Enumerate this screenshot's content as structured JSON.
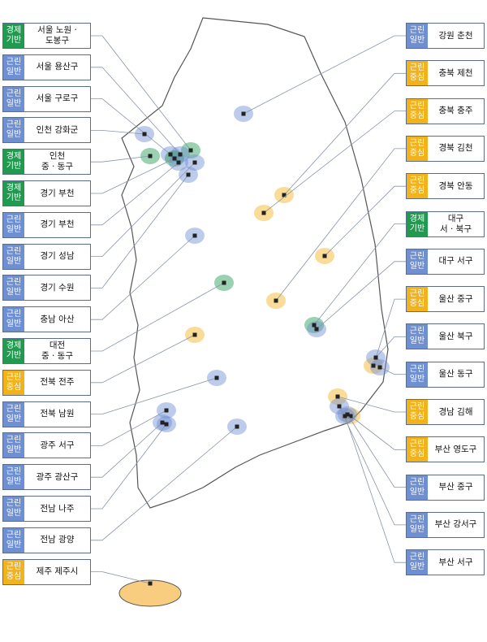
{
  "left": [
    {
      "tag": [
        "경제",
        "기반"
      ],
      "color": "#1f9a4f",
      "name": [
        "서울 노원 ·",
        "도봉구"
      ]
    },
    {
      "tag": [
        "근린",
        "일반"
      ],
      "color": "#6f8fd3",
      "name": [
        "서울 용산구"
      ]
    },
    {
      "tag": [
        "근린",
        "일반"
      ],
      "color": "#6f8fd3",
      "name": [
        "서울 구로구"
      ]
    },
    {
      "tag": [
        "근린",
        "일반"
      ],
      "color": "#6f8fd3",
      "name": [
        "인천 강화군"
      ]
    },
    {
      "tag": [
        "경제",
        "기반"
      ],
      "color": "#1f9a4f",
      "name": [
        "인천",
        "중 · 동구"
      ]
    },
    {
      "tag": [
        "경제",
        "기반"
      ],
      "color": "#1f9a4f",
      "name": [
        "경기 부천"
      ]
    },
    {
      "tag": [
        "근린",
        "일반"
      ],
      "color": "#6f8fd3",
      "name": [
        "경기 부천"
      ]
    },
    {
      "tag": [
        "근린",
        "일반"
      ],
      "color": "#6f8fd3",
      "name": [
        "경기 성남"
      ]
    },
    {
      "tag": [
        "근린",
        "일반"
      ],
      "color": "#6f8fd3",
      "name": [
        "경기 수원"
      ]
    },
    {
      "tag": [
        "근린",
        "일반"
      ],
      "color": "#6f8fd3",
      "name": [
        "충남 아산"
      ]
    },
    {
      "tag": [
        "경제",
        "기반"
      ],
      "color": "#1f9a4f",
      "name": [
        "대전",
        "중 · 동구"
      ]
    },
    {
      "tag": [
        "근린",
        "중심"
      ],
      "color": "#f2b21b",
      "name": [
        "전북 전주"
      ]
    },
    {
      "tag": [
        "근린",
        "일반"
      ],
      "color": "#6f8fd3",
      "name": [
        "전북 남원"
      ]
    },
    {
      "tag": [
        "근린",
        "일반"
      ],
      "color": "#6f8fd3",
      "name": [
        "광주 서구"
      ]
    },
    {
      "tag": [
        "근린",
        "일반"
      ],
      "color": "#6f8fd3",
      "name": [
        "광주 광산구"
      ]
    },
    {
      "tag": [
        "근린",
        "일반"
      ],
      "color": "#6f8fd3",
      "name": [
        "전남 나주"
      ]
    },
    {
      "tag": [
        "근린",
        "일반"
      ],
      "color": "#6f8fd3",
      "name": [
        "전남 광양"
      ]
    },
    {
      "tag": [
        "근린",
        "중심"
      ],
      "color": "#f2b21b",
      "name": [
        "제주 제주시"
      ]
    }
  ],
  "right": [
    {
      "tag": [
        "근린",
        "일반"
      ],
      "color": "#6f8fd3",
      "name": [
        "강원 춘천"
      ]
    },
    {
      "tag": [
        "근린",
        "중심"
      ],
      "color": "#f2b21b",
      "name": [
        "충북 제천"
      ]
    },
    {
      "tag": [
        "근린",
        "중심"
      ],
      "color": "#f2b21b",
      "name": [
        "충북 충주"
      ]
    },
    {
      "tag": [
        "근린",
        "중심"
      ],
      "color": "#f2b21b",
      "name": [
        "경북 김천"
      ]
    },
    {
      "tag": [
        "근린",
        "중심"
      ],
      "color": "#f2b21b",
      "name": [
        "경북 안동"
      ]
    },
    {
      "tag": [
        "경제",
        "기반"
      ],
      "color": "#1f9a4f",
      "name": [
        "대구",
        "서 · 북구"
      ]
    },
    {
      "tag": [
        "근린",
        "일반"
      ],
      "color": "#6f8fd3",
      "name": [
        "대구 서구"
      ]
    },
    {
      "tag": [
        "근린",
        "중심"
      ],
      "color": "#f2b21b",
      "name": [
        "울산 중구"
      ]
    },
    {
      "tag": [
        "근린",
        "일반"
      ],
      "color": "#6f8fd3",
      "name": [
        "울산 북구"
      ]
    },
    {
      "tag": [
        "근린",
        "일반"
      ],
      "color": "#6f8fd3",
      "name": [
        "울산 동구"
      ]
    },
    {
      "tag": [
        "근린",
        "중심"
      ],
      "color": "#f2b21b",
      "name": [
        "경남 김해"
      ]
    },
    {
      "tag": [
        "근린",
        "중심"
      ],
      "color": "#f2b21b",
      "name": [
        "부산 영도구"
      ]
    },
    {
      "tag": [
        "근린",
        "일반"
      ],
      "color": "#6f8fd3",
      "name": [
        "부산 중구"
      ]
    },
    {
      "tag": [
        "근린",
        "일반"
      ],
      "color": "#6f8fd3",
      "name": [
        "부산 강서구"
      ]
    },
    {
      "tag": [
        "근린",
        "일반"
      ],
      "color": "#6f8fd3",
      "name": [
        "부산 서구"
      ]
    }
  ]
}
